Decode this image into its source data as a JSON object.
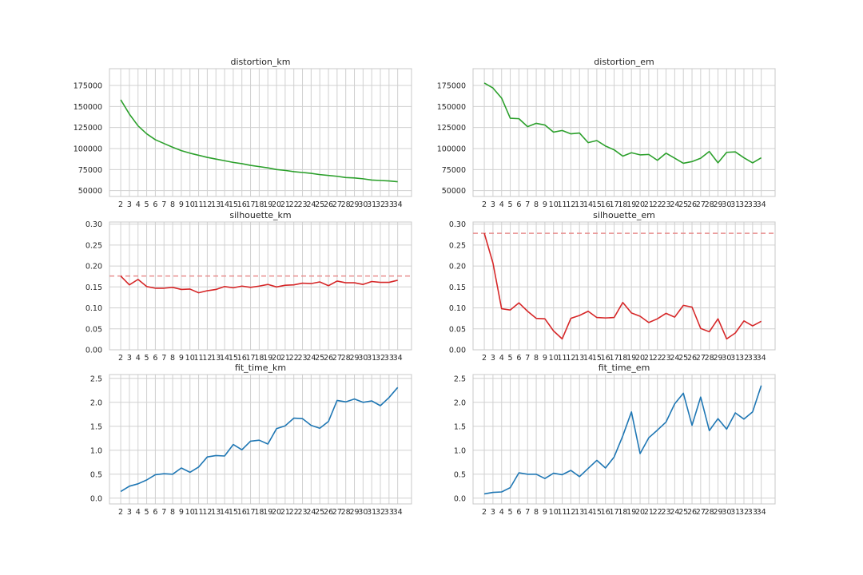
{
  "chart_data": [
    {
      "type": "line",
      "title": "distortion_km",
      "x": [
        2,
        3,
        4,
        5,
        6,
        7,
        8,
        9,
        10,
        11,
        12,
        13,
        14,
        15,
        16,
        17,
        18,
        19,
        20,
        21,
        22,
        23,
        24,
        25,
        26,
        27,
        28,
        29,
        30,
        31,
        32,
        33,
        34
      ],
      "series": [
        {
          "values": [
            158000,
            141000,
            127000,
            117500,
            110500,
            106000,
            101500,
            97500,
            94500,
            92000,
            89500,
            87500,
            85500,
            83500,
            82000,
            80000,
            78500,
            77000,
            75000,
            74000,
            72500,
            71500,
            70500,
            69000,
            68000,
            67000,
            65500,
            65000,
            64000,
            62500,
            62000,
            61500,
            60500
          ]
        }
      ],
      "yticks": [
        50000,
        75000,
        100000,
        125000,
        150000,
        175000
      ],
      "ylim": [
        43000,
        195000
      ],
      "line_color": "#2ca02c",
      "grid": true
    },
    {
      "type": "line",
      "title": "distortion_em",
      "x": [
        2,
        3,
        4,
        5,
        6,
        7,
        8,
        9,
        10,
        11,
        12,
        13,
        14,
        15,
        16,
        17,
        18,
        19,
        20,
        21,
        22,
        23,
        24,
        25,
        26,
        27,
        28,
        29,
        30,
        31,
        32,
        33,
        34
      ],
      "series": [
        {
          "values": [
            178000,
            172000,
            160000,
            136000,
            135500,
            126000,
            130000,
            128000,
            119500,
            121500,
            117500,
            118500,
            107000,
            109500,
            103000,
            98500,
            91000,
            95000,
            92500,
            93000,
            86000,
            94500,
            88500,
            82500,
            84500,
            88500,
            96500,
            83000,
            95500,
            96000,
            89000,
            83000,
            89000
          ]
        }
      ],
      "yticks": [
        50000,
        75000,
        100000,
        125000,
        150000,
        175000
      ],
      "ylim": [
        43000,
        195000
      ],
      "line_color": "#2ca02c",
      "grid": true
    },
    {
      "type": "line",
      "title": "silhouette_km",
      "x": [
        2,
        3,
        4,
        5,
        6,
        7,
        8,
        9,
        10,
        11,
        12,
        13,
        14,
        15,
        16,
        17,
        18,
        19,
        20,
        21,
        22,
        23,
        24,
        25,
        26,
        27,
        28,
        29,
        30,
        31,
        32,
        33,
        34
      ],
      "series": [
        {
          "values": [
            0.176,
            0.155,
            0.168,
            0.151,
            0.147,
            0.147,
            0.149,
            0.144,
            0.145,
            0.136,
            0.141,
            0.144,
            0.151,
            0.148,
            0.152,
            0.149,
            0.152,
            0.156,
            0.15,
            0.154,
            0.155,
            0.159,
            0.158,
            0.162,
            0.153,
            0.164,
            0.16,
            0.16,
            0.156,
            0.163,
            0.161,
            0.161,
            0.166
          ]
        }
      ],
      "reference_line": 0.176,
      "yticks": [
        0.0,
        0.05,
        0.1,
        0.15,
        0.2,
        0.25,
        0.3
      ],
      "ylim": [
        0,
        0.305
      ],
      "line_color": "#d62728",
      "reference_color": "#e88e8e",
      "grid": true
    },
    {
      "type": "line",
      "title": "silhouette_em",
      "x": [
        2,
        3,
        4,
        5,
        6,
        7,
        8,
        9,
        10,
        11,
        12,
        13,
        14,
        15,
        16,
        17,
        18,
        19,
        20,
        21,
        22,
        23,
        24,
        25,
        26,
        27,
        28,
        29,
        30,
        31,
        32,
        33,
        34
      ],
      "series": [
        {
          "values": [
            0.278,
            0.207,
            0.098,
            0.095,
            0.112,
            0.092,
            0.075,
            0.074,
            0.045,
            0.026,
            0.075,
            0.082,
            0.092,
            0.077,
            0.076,
            0.077,
            0.113,
            0.088,
            0.08,
            0.065,
            0.074,
            0.087,
            0.078,
            0.106,
            0.102,
            0.051,
            0.043,
            0.074,
            0.026,
            0.04,
            0.069,
            0.057,
            0.068
          ]
        }
      ],
      "reference_line": 0.278,
      "yticks": [
        0.0,
        0.05,
        0.1,
        0.15,
        0.2,
        0.25,
        0.3
      ],
      "ylim": [
        0,
        0.305
      ],
      "line_color": "#d62728",
      "reference_color": "#e88e8e",
      "grid": true
    },
    {
      "type": "line",
      "title": "fit_time_km",
      "x": [
        2,
        3,
        4,
        5,
        6,
        7,
        8,
        9,
        10,
        11,
        12,
        13,
        14,
        15,
        16,
        17,
        18,
        19,
        20,
        21,
        22,
        23,
        24,
        25,
        26,
        27,
        28,
        29,
        30,
        31,
        32,
        33,
        34
      ],
      "series": [
        {
          "values": [
            0.14,
            0.25,
            0.3,
            0.38,
            0.49,
            0.51,
            0.5,
            0.63,
            0.54,
            0.65,
            0.86,
            0.89,
            0.88,
            1.12,
            1.01,
            1.19,
            1.21,
            1.13,
            1.45,
            1.51,
            1.67,
            1.66,
            1.52,
            1.46,
            1.6,
            2.04,
            2.01,
            2.07,
            2.0,
            2.03,
            1.93,
            2.1,
            2.31
          ]
        }
      ],
      "yticks": [
        0.0,
        0.5,
        1.0,
        1.5,
        2.0,
        2.5
      ],
      "ylim": [
        -0.12,
        2.58
      ],
      "line_color": "#1f77b4",
      "grid": true
    },
    {
      "type": "line",
      "title": "fit_time_em",
      "x": [
        2,
        3,
        4,
        5,
        6,
        7,
        8,
        9,
        10,
        11,
        12,
        13,
        14,
        15,
        16,
        17,
        18,
        19,
        20,
        21,
        22,
        23,
        24,
        25,
        26,
        27,
        28,
        29,
        30,
        31,
        32,
        33,
        34
      ],
      "series": [
        {
          "values": [
            0.09,
            0.12,
            0.13,
            0.22,
            0.53,
            0.5,
            0.5,
            0.41,
            0.52,
            0.49,
            0.58,
            0.45,
            0.62,
            0.79,
            0.63,
            0.86,
            1.3,
            1.8,
            0.93,
            1.26,
            1.42,
            1.59,
            1.97,
            2.19,
            1.52,
            2.11,
            1.41,
            1.66,
            1.44,
            1.78,
            1.65,
            1.8,
            2.35
          ]
        }
      ],
      "yticks": [
        0.0,
        0.5,
        1.0,
        1.5,
        2.0,
        2.5
      ],
      "ylim": [
        -0.12,
        2.58
      ],
      "line_color": "#1f77b4",
      "grid": true
    }
  ]
}
